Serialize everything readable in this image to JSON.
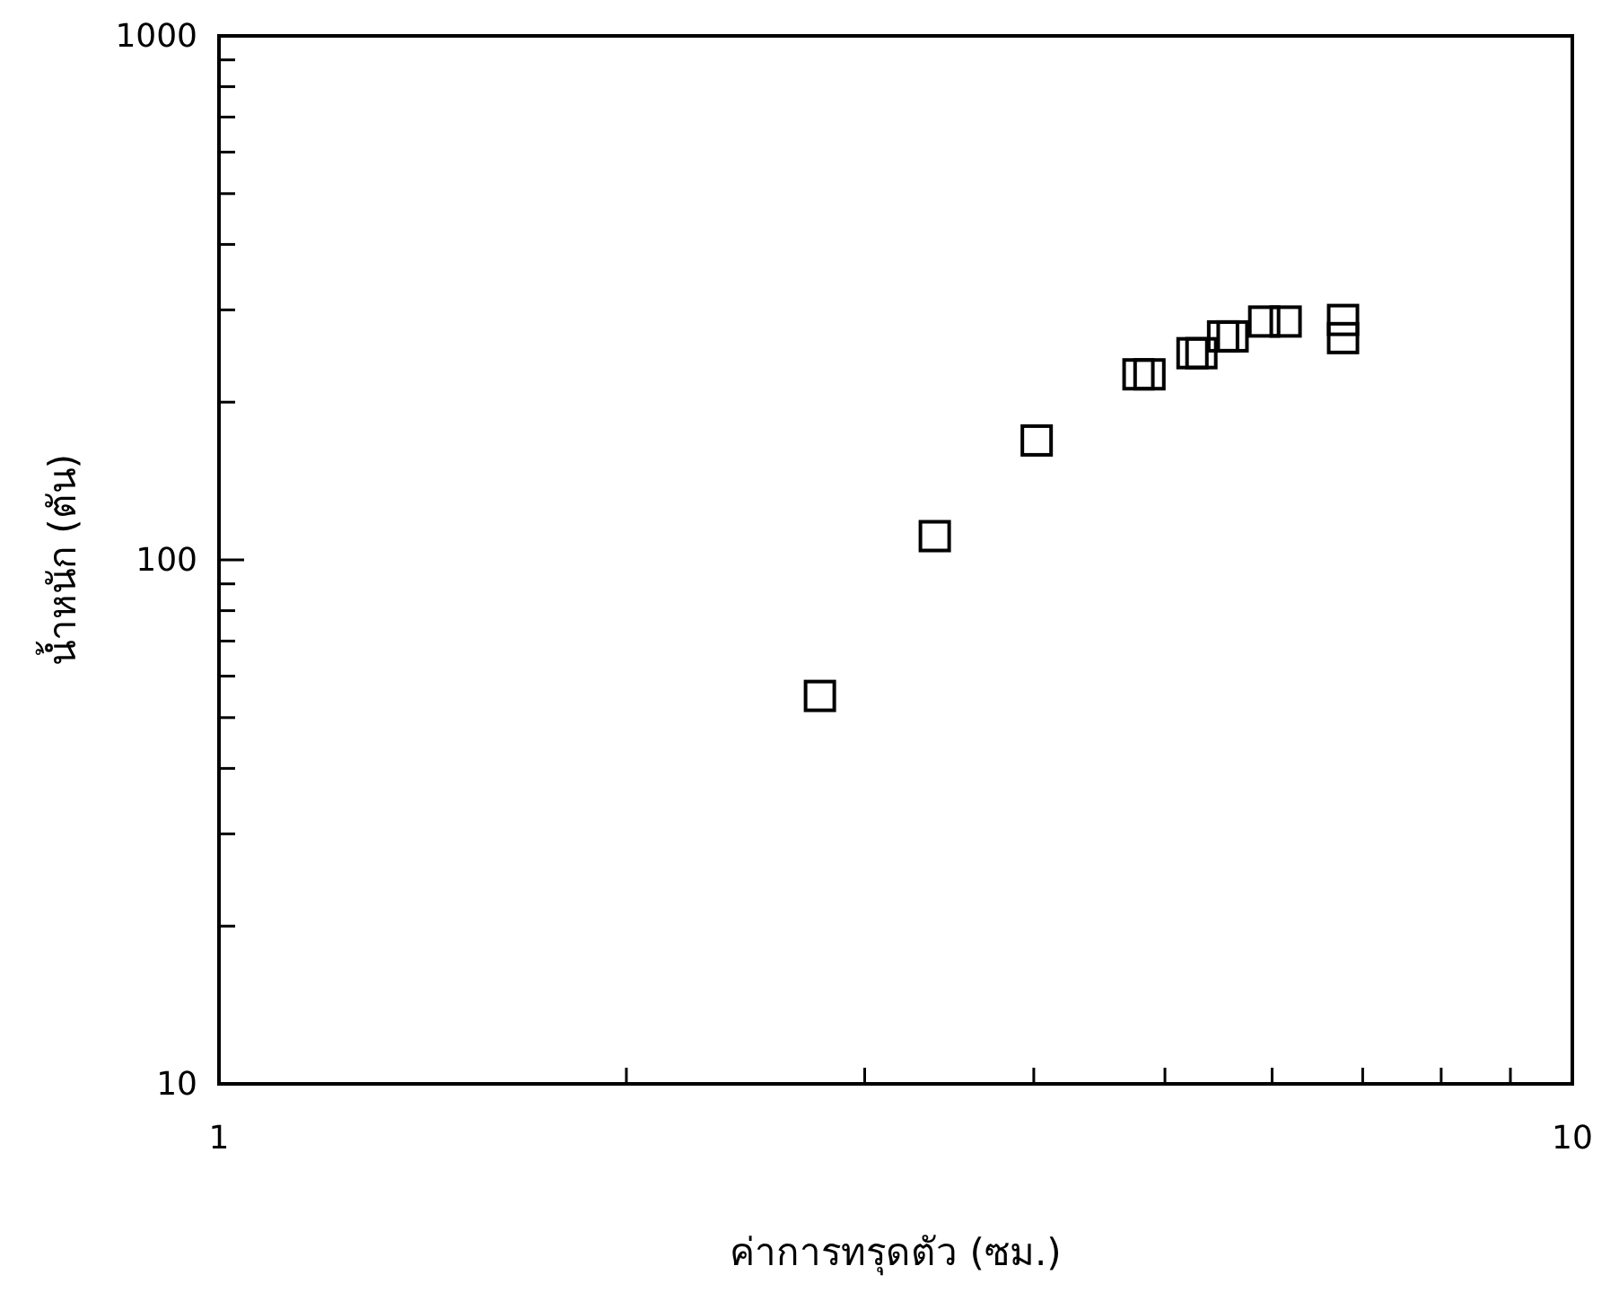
{
  "chart_data": {
    "type": "scatter",
    "xlabel": "ค่าการทรุดตัว (ซม.)",
    "ylabel": "น้ำหนัก (ตัน)",
    "log": "xy",
    "grid": false,
    "marker": "square",
    "xlim": [
      1,
      10
    ],
    "ylim": [
      10,
      1000
    ],
    "xticks": [
      1,
      {
        "value": 2,
        "label": null
      },
      {
        "value": 3,
        "label": null
      },
      {
        "value": 4,
        "label": null
      },
      {
        "value": 5,
        "label": null
      },
      {
        "value": 6,
        "label": null
      },
      {
        "value": 7,
        "label": null
      },
      {
        "value": 8,
        "label": null
      },
      {
        "value": 9,
        "label": null
      },
      10
    ],
    "yticks": [
      10,
      {
        "value": 20,
        "label": null
      },
      {
        "value": 30,
        "label": null
      },
      {
        "value": 40,
        "label": null
      },
      {
        "value": 50,
        "label": null
      },
      {
        "value": 60,
        "label": null
      },
      {
        "value": 70,
        "label": null
      },
      {
        "value": 80,
        "label": null
      },
      {
        "value": 90,
        "label": null
      },
      100,
      {
        "value": 200,
        "label": null
      },
      {
        "value": 300,
        "label": null
      },
      {
        "value": 400,
        "label": null
      },
      {
        "value": 500,
        "label": null
      },
      {
        "value": 600,
        "label": null
      },
      {
        "value": 700,
        "label": null
      },
      {
        "value": 800,
        "label": null
      },
      {
        "value": 900,
        "label": null
      },
      1000
    ],
    "series": [
      {
        "color": "#000000",
        "x": [
          2.78,
          3.38,
          4.02,
          4.78,
          4.87,
          5.24,
          5.32,
          5.52,
          5.61,
          5.92,
          6.14,
          6.77,
          6.77
        ],
        "values": [
          55,
          111,
          169,
          226,
          226,
          248,
          248,
          267,
          267,
          285,
          285,
          287,
          265
        ]
      }
    ]
  }
}
